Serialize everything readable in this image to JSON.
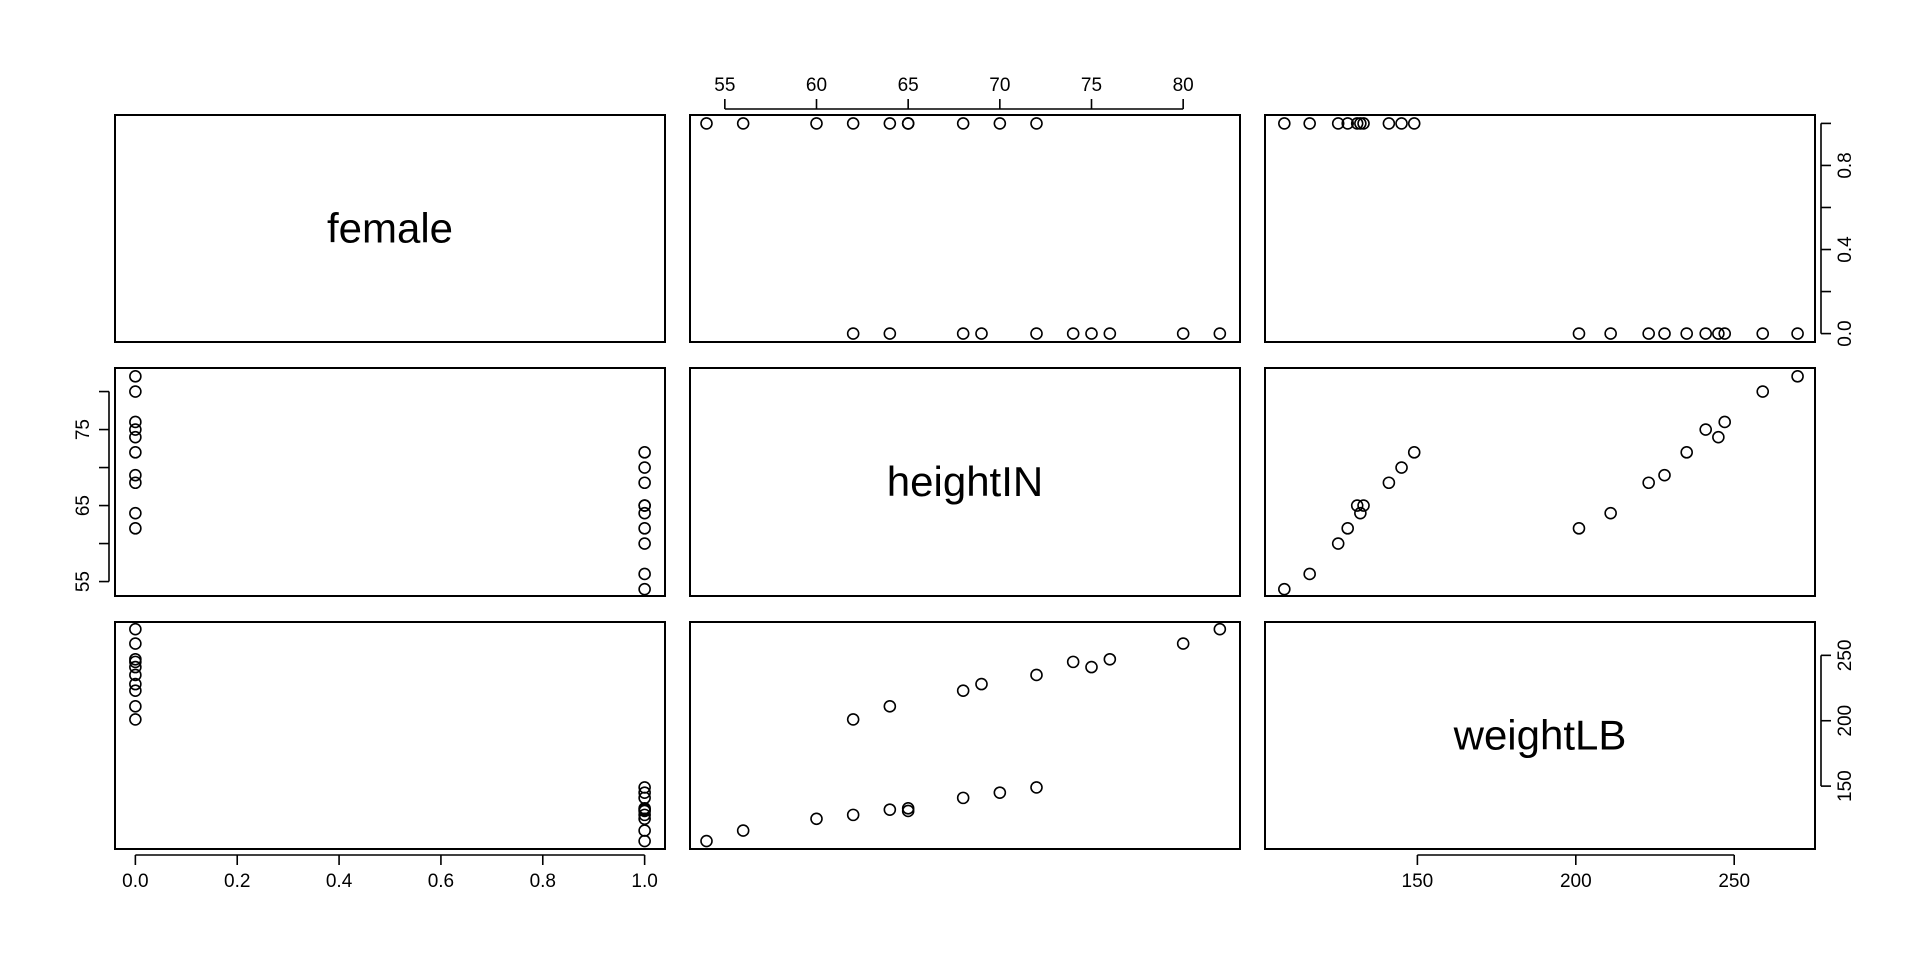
{
  "chart_data": {
    "type": "scatter",
    "plot_kind": "scatterplot matrix (pairs)",
    "variables": [
      "female",
      "heightIN",
      "weightLB"
    ],
    "axis_ranges": {
      "female": [
        -0.04,
        1.04
      ],
      "heightIN": [
        53.1,
        83.1
      ],
      "weightLB": [
        101.9,
        275.5
      ]
    },
    "axis_ticks": {
      "female": {
        "values": [
          0,
          0.2,
          0.4,
          0.6,
          0.8,
          1
        ],
        "labels": [
          "0.0",
          "0.2",
          "0.4",
          "0.6",
          "0.8",
          "1.0"
        ]
      },
      "female_right": {
        "values": [
          0,
          0.2,
          0.4,
          0.6,
          0.8,
          1
        ],
        "labels": [
          "0.0",
          "",
          "0.4",
          "",
          "0.8",
          ""
        ]
      },
      "heightIN_top": {
        "values": [
          55,
          60,
          65,
          70,
          75,
          80
        ],
        "labels": [
          "55",
          "60",
          "65",
          "70",
          "75",
          "80"
        ]
      },
      "heightIN_left": {
        "values": [
          55,
          60,
          65,
          70,
          75,
          80
        ],
        "labels": [
          "55",
          "",
          "65",
          "",
          "75",
          ""
        ]
      },
      "weightLB": {
        "values": [
          150,
          200,
          250
        ],
        "labels": [
          "150",
          "200",
          "250"
        ]
      }
    },
    "axes_drawn": {
      "top": "heightIN",
      "bottom_left": "female",
      "bottom_right": "weightLB",
      "left": "heightIN",
      "right_top": "female",
      "right_bottom": "weightLB"
    },
    "grid": false,
    "legend": "none",
    "observations": [
      {
        "female": 1,
        "heightIN": 54,
        "weightLB": 108
      },
      {
        "female": 1,
        "heightIN": 56,
        "weightLB": 116
      },
      {
        "female": 1,
        "heightIN": 60,
        "weightLB": 125
      },
      {
        "female": 1,
        "heightIN": 62,
        "weightLB": 128
      },
      {
        "female": 1,
        "heightIN": 64,
        "weightLB": 132
      },
      {
        "female": 1,
        "heightIN": 65,
        "weightLB": 131
      },
      {
        "female": 1,
        "heightIN": 65,
        "weightLB": 133
      },
      {
        "female": 1,
        "heightIN": 68,
        "weightLB": 141
      },
      {
        "female": 1,
        "heightIN": 70,
        "weightLB": 145
      },
      {
        "female": 1,
        "heightIN": 72,
        "weightLB": 149
      },
      {
        "female": 0,
        "heightIN": 62,
        "weightLB": 201
      },
      {
        "female": 0,
        "heightIN": 64,
        "weightLB": 211
      },
      {
        "female": 0,
        "heightIN": 68,
        "weightLB": 223
      },
      {
        "female": 0,
        "heightIN": 69,
        "weightLB": 228
      },
      {
        "female": 0,
        "heightIN": 72,
        "weightLB": 235
      },
      {
        "female": 0,
        "heightIN": 74,
        "weightLB": 245
      },
      {
        "female": 0,
        "heightIN": 75,
        "weightLB": 241
      },
      {
        "female": 0,
        "heightIN": 76,
        "weightLB": 247
      },
      {
        "female": 0,
        "heightIN": 80,
        "weightLB": 259
      },
      {
        "female": 0,
        "heightIN": 82,
        "weightLB": 270
      }
    ]
  }
}
